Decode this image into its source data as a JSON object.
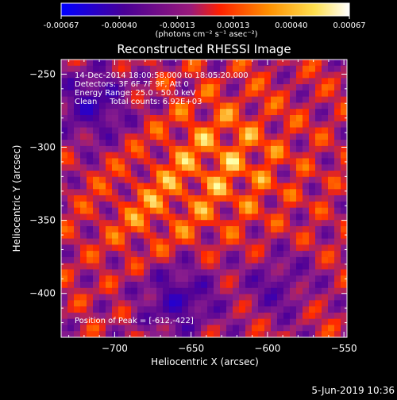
{
  "colorbar": {
    "ticks": [
      "-0.00067",
      "-0.00040",
      "-0.00013",
      "0.00013",
      "0.00040",
      "0.00067"
    ],
    "tick_values": [
      -0.00067,
      -0.0004,
      -0.00013,
      0.00013,
      0.0004,
      0.00067
    ],
    "range": [
      -0.00067,
      0.00067
    ],
    "units_label": "(photons cm⁻² s⁻¹ asec⁻²)"
  },
  "chart_data": {
    "type": "heatmap",
    "title": "Reconstructed RHESSI Image",
    "xlabel": "Heliocentric X (arcsec)",
    "ylabel": "Heliocentric Y (arcsec)",
    "xlim": [
      -735,
      -548
    ],
    "ylim": [
      -430,
      -240
    ],
    "x_ticks": [
      -700,
      -650,
      -600,
      -550
    ],
    "x_tick_labels": [
      "−700",
      "−650",
      "−600",
      "−550"
    ],
    "y_ticks": [
      -250,
      -300,
      -350,
      -400
    ],
    "y_tick_labels": [
      "−250",
      "−300",
      "−350",
      "−400"
    ],
    "info_lines": [
      "14-Dec-2014 18:00:58.000 to 18:05:20.000",
      "Detectors: 3F 6F 7F 9F, Att 0",
      "Energy Range: 25.0 - 50.0 keV",
      "Clean     Total counts: 6.92E+03"
    ],
    "peak_label": "Position of Peak = [-612,-422]",
    "peak": [
      -612,
      -422
    ],
    "colormap": [
      "#0000ff",
      "#4f0096",
      "#8c1e8c",
      "#ff2800",
      "#ff9600",
      "#ffffa0",
      "#ffffff"
    ]
  },
  "footer_date": "5-Jun-2019 10:36"
}
